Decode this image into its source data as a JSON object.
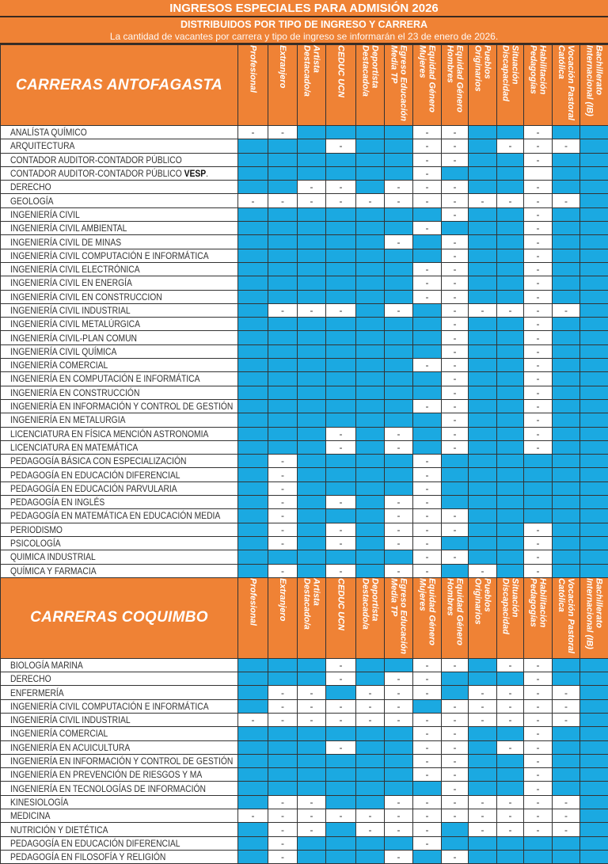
{
  "header": {
    "title": "INGRESOS ESPECIALES PARA ADMISIÓN 2026",
    "subtitle": "DISTRIBUIDOS POR TIPO DE INGRESO Y CARRERA",
    "note": "La cantidad de vacantes por carrera y tipo de ingreso se informarán el 23 de enero de 2026."
  },
  "colors": {
    "header": "#EF8235",
    "available": "#1BA9E1",
    "not_available": "#FFFFFF"
  },
  "legend": {
    "B": "available (blue cell)",
    "-": "not available",
    "W": "blank"
  },
  "columns": [
    "Profesional",
    "Extranjero",
    "Artista\nDestacado/a",
    "CEDUC UCN",
    "Deportista\nDestacado/a",
    "Egreso Educación\nMedia TP",
    "Equidad Género\nMujeres",
    "Equidad Género\nHombres",
    "Pueblos\nOriginarios",
    "Situación\nDiscapacidad",
    "Habilitación\nPedagogías",
    "Vocación Pastoral\nCatólica",
    "Bachillerato\nInternacional (IB)"
  ],
  "sections": [
    {
      "title": "CARRERAS ANTOFAGASTA",
      "rows": [
        {
          "label": "ANALÍSTA QUÍMICO",
          "cells": "--BBBB--BB-BB"
        },
        {
          "label": "ARQUITECTURA",
          "cells": "BBB-BB--B---B"
        },
        {
          "label": "CONTADOR AUDITOR-CONTADOR PÚBLICO",
          "cells": "BBBBBB--BB-BB"
        },
        {
          "label": "CONTADOR AUDITOR-CONTADOR PÚBLICO ",
          "bold": "VESP",
          "suffix": ".",
          "cells": "BBBBBB-BBBWBB"
        },
        {
          "label": "DERECHO",
          "cells": "BB--B---BB-BB"
        },
        {
          "label": "GEOLOGÍA",
          "cells": "------------B"
        },
        {
          "label": "INGENIERÍA CIVIL",
          "cells": "BBBBBBB-BB-BB"
        },
        {
          "label": "INGENIERÍA CIVIL AMBIENTAL",
          "cells": "BBBBBB-BBB-BB"
        },
        {
          "label": "INGENIERÍA CIVIL DE MINAS",
          "cells": "BBBBB-B-BB-BB"
        },
        {
          "label": "INGENIERÍA CIVIL COMPUTACIÓN E INFORMÁTICA",
          "cells": "BBBBBBB-BB-BB"
        },
        {
          "label": "INGENIERÍA CIVIL ELECTRÓNICA",
          "cells": "BBBBBB--BB-BB"
        },
        {
          "label": "INGENIERÍA CIVIL EN ENERGÍA",
          "cells": "BBBBBB--BB-BB"
        },
        {
          "label": "INGENIERÍA CIVIL EN  CONSTRUCCION",
          "cells": "BBBBBB--BB-BB"
        },
        {
          "label": "INGENIERÍA CIVIL INDUSTRIAL",
          "cells": "B---B-B-----B"
        },
        {
          "label": "INGENIERÍA CIVIL METALÚRGICA",
          "cells": "BBBBBBB-BB-BB"
        },
        {
          "label": "INGENIERÍA CIVIL-PLAN COMUN",
          "cells": "BBBBBBB-BB-BB"
        },
        {
          "label": "INGENIERÍA CIVIL QUÍMICA",
          "cells": "BBBBBBB-BB-BB"
        },
        {
          "label": "INGENIERÍA COMERCIAL",
          "cells": "BBBBBB--BB-BB"
        },
        {
          "label": "INGENIERÍA EN COMPUTACIÓN E INFORMÁTICA",
          "cells": "BBBBBBB-BB-BB"
        },
        {
          "label": "INGENIERÍA EN CONSTRUCCIÓN",
          "cells": "BBBBBBB-BB-BB"
        },
        {
          "label": "INGENIERÍA EN INFORMACIÓN Y CONTROL DE GESTIÓN",
          "cells": "BBBBBB--BB-BB"
        },
        {
          "label": "INGENIERÍA EN METALURGIA",
          "cells": "BBBBBBB-BB-BB"
        },
        {
          "label": "LICENCIATURA EN FÍSICA MENCIÓN ASTRONOMIA",
          "cells": "BBB-B-B-BB-BB"
        },
        {
          "label": "LICENCIATURA EN MATEMÁTICA",
          "cells": "BBB-B-B-BB-BB"
        },
        {
          "label": "PEDAGOGÍA BÁSICA CON ESPECIALIZACIÓN",
          "cells": "B-BBBB-BBBBBB"
        },
        {
          "label": "PEDAGOGÍA EN EDUCACIÓN DIFERENCIAL",
          "cells": "B-BBBB-BBBBBB"
        },
        {
          "label": "PEDAGOGÍA EN EDUCACIÓN PARVULARIA",
          "cells": "B-BBBB-BBBBBB"
        },
        {
          "label": "PEDAGOGÍA EN INGLÉS",
          "cells": "B-B-B--BBBBBB"
        },
        {
          "label": "PEDAGOGÍA EN MATEMÁTICA EN EDUCACIÓN MEDIA",
          "cells": "B-BBB---BBBBB"
        },
        {
          "label": "PERIODISMO",
          "cells": "B-B-B---BB-BB"
        },
        {
          "label": "PSICOLOGÍA",
          "cells": "B-B-B--BBB-BB"
        },
        {
          "label": "QUIMICA INDUSTRIAL",
          "cells": "BBBBBB--BB-BB"
        },
        {
          "label": "QUÍMICA Y FARMACIA",
          "cells": "B-B-B--B-B-BB"
        }
      ]
    },
    {
      "title": "CARRERAS COQUIMBO",
      "rows": [
        {
          "label": "BIOLOGÍA MARINA",
          "cells": "BBB-BB--B--BB"
        },
        {
          "label": "DERECHO",
          "cells": "BBB-B--BBB-BB"
        },
        {
          "label": "ENFERMERÍA",
          "cells": "B--B---B----B"
        },
        {
          "label": "INGENIERÍA CIVIL COMPUTACIÓN E INFORMÁTICA",
          "cells": "B-----B-----B"
        },
        {
          "label": "INGENIERÍA CIVIL INDUSTRIAL",
          "cells": "------------B"
        },
        {
          "label": "INGENIERÍA COMERCIAL",
          "cells": "BBBBBB--BB-BB"
        },
        {
          "label": "INGENIERÍA EN ACUICULTURA",
          "cells": "BBB-BB--B--BB"
        },
        {
          "label": "INGENIERÍA EN INFORMACIÓN Y CONTROL DE GESTIÓN",
          "cells": "BBBBBB--BB-BB"
        },
        {
          "label": "INGENIERÍA EN PREVENCIÓN DE RIESGOS Y MA",
          "cells": "BBBBBB--BB-BB"
        },
        {
          "label": "INGENIERÍA EN TECNOLOGÍAS DE INFORMACIÓN",
          "cells": "BBBBBBB-BB-BB"
        },
        {
          "label": "KINESIOLOGÍA",
          "cells": "B--BB-------B"
        },
        {
          "label": "MEDICINA",
          "cells": "------------B"
        },
        {
          "label": "NUTRICIÓN Y DIETÉTICA",
          "cells": "B--B---B----B"
        },
        {
          "label": "PEDAGOGÍA EN EDUCACIÓN DIFERENCIAL",
          "cells": "B-BBBB-BBBBBB"
        },
        {
          "label": "PEDAGOGÍA EN FILOSOFÍA Y RELIGIÓN",
          "cells": "B-BBB-B-BBBBB"
        }
      ]
    }
  ]
}
